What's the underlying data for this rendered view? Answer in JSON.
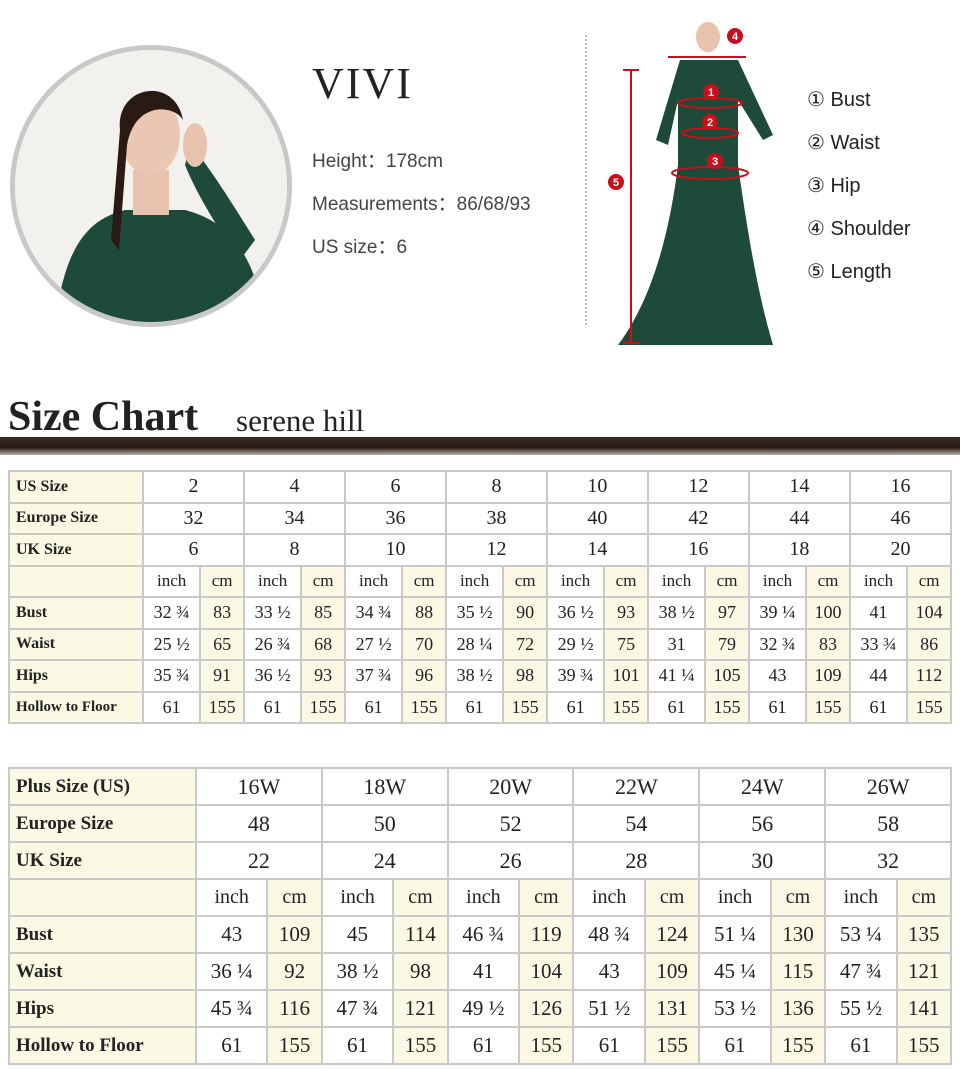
{
  "model": {
    "name": "VIVI",
    "height": "Height：178cm",
    "measurements": "Measurements：86/68/93",
    "us_size": "US size：6"
  },
  "legend": [
    "① Bust",
    "② Waist",
    "③ Hip",
    "④ Shoulder",
    "⑤ Length"
  ],
  "figure_markers": [
    "1",
    "2",
    "3",
    "4",
    "5"
  ],
  "colors": {
    "dress": "#1e4a3a",
    "marker": "#c8101a",
    "cream": "#fbf9e4"
  },
  "title": "Size Chart",
  "brand": "serene hill",
  "standard_table": {
    "header_rows": [
      {
        "label": "US Size",
        "values": [
          "2",
          "4",
          "6",
          "8",
          "10",
          "12",
          "14",
          "16"
        ]
      },
      {
        "label": "Europe Size",
        "values": [
          "32",
          "34",
          "36",
          "38",
          "40",
          "42",
          "44",
          "46"
        ]
      },
      {
        "label": "UK Size",
        "values": [
          "6",
          "8",
          "10",
          "12",
          "14",
          "16",
          "18",
          "20"
        ]
      }
    ],
    "units": [
      "inch",
      "cm"
    ],
    "rows": [
      {
        "label": "Bust",
        "values": [
          "32 ¾",
          "83",
          "33 ½",
          "85",
          "34 ¾",
          "88",
          "35 ½",
          "90",
          "36 ½",
          "93",
          "38 ½",
          "97",
          "39 ¼",
          "100",
          "41",
          "104"
        ]
      },
      {
        "label": "Waist",
        "values": [
          "25 ½",
          "65",
          "26 ¾",
          "68",
          "27 ½",
          "70",
          "28 ¼",
          "72",
          "29 ½",
          "75",
          "31",
          "79",
          "32 ¾",
          "83",
          "33 ¾",
          "86"
        ]
      },
      {
        "label": "Hips",
        "values": [
          "35 ¾",
          "91",
          "36 ½",
          "93",
          "37 ¾",
          "96",
          "38 ½",
          "98",
          "39 ¾",
          "101",
          "41 ¼",
          "105",
          "43",
          "109",
          "44",
          "112"
        ]
      },
      {
        "label": "Hollow to Floor",
        "values": [
          "61",
          "155",
          "61",
          "155",
          "61",
          "155",
          "61",
          "155",
          "61",
          "155",
          "61",
          "155",
          "61",
          "155",
          "61",
          "155"
        ]
      }
    ]
  },
  "plus_table": {
    "header_rows": [
      {
        "label": "Plus Size (US)",
        "values": [
          "16W",
          "18W",
          "20W",
          "22W",
          "24W",
          "26W"
        ]
      },
      {
        "label": "Europe Size",
        "values": [
          "48",
          "50",
          "52",
          "54",
          "56",
          "58"
        ]
      },
      {
        "label": "UK Size",
        "values": [
          "22",
          "24",
          "26",
          "28",
          "30",
          "32"
        ]
      }
    ],
    "units": [
      "inch",
      "cm"
    ],
    "rows": [
      {
        "label": "Bust",
        "values": [
          "43",
          "109",
          "45",
          "114",
          "46 ¾",
          "119",
          "48 ¾",
          "124",
          "51 ¼",
          "130",
          "53 ¼",
          "135"
        ]
      },
      {
        "label": "Waist",
        "values": [
          "36 ¼",
          "92",
          "38 ½",
          "98",
          "41",
          "104",
          "43",
          "109",
          "45 ¼",
          "115",
          "47 ¾",
          "121"
        ]
      },
      {
        "label": "Hips",
        "values": [
          "45 ¾",
          "116",
          "47 ¾",
          "121",
          "49 ½",
          "126",
          "51 ½",
          "131",
          "53 ½",
          "136",
          "55 ½",
          "141"
        ]
      },
      {
        "label": "Hollow to Floor",
        "values": [
          "61",
          "155",
          "61",
          "155",
          "61",
          "155",
          "61",
          "155",
          "61",
          "155",
          "61",
          "155"
        ]
      }
    ]
  }
}
